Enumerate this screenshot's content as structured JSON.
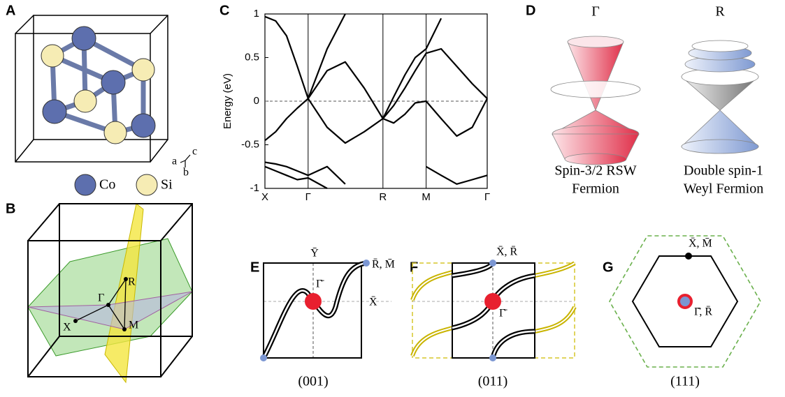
{
  "panel_a": {
    "label": "A",
    "legend": [
      "Co",
      "Si"
    ],
    "axes": [
      "a",
      "b",
      "c"
    ]
  },
  "panel_b": {
    "label": "B",
    "points": [
      "R",
      "Γ",
      "X",
      "M"
    ]
  },
  "chart_data": {
    "type": "line",
    "panel_label": "C",
    "y_label": "Energy (eV)",
    "x": [
      0,
      0.125,
      0.25,
      0.375,
      0.5,
      0.72,
      0.93,
      1.15,
      1.366,
      1.49,
      1.62,
      1.74,
      1.866,
      2.04,
      2.22,
      2.4,
      2.573
    ],
    "xlim": [
      0,
      2.573
    ],
    "xticks": [
      {
        "value": 0,
        "label": "X"
      },
      {
        "value": 0.5,
        "label": "Γ"
      },
      {
        "value": 1.366,
        "label": "R"
      },
      {
        "value": 1.866,
        "label": "M"
      },
      {
        "value": 2.573,
        "label": "Γ"
      }
    ],
    "ylim": [
      -1,
      1
    ],
    "yticks": [
      1,
      0.5,
      0,
      -0.5,
      -1
    ],
    "hline": 0,
    "series": [
      {
        "color": "#000000",
        "values": [
          0.97,
          0.92,
          0.75,
          0.4,
          0.03,
          0.35,
          0.45,
          0.15,
          -0.2,
          -0.05,
          0.15,
          0.35,
          0.55,
          0.6,
          0.4,
          0.2,
          0.03
        ]
      },
      {
        "color": "#000000",
        "values": [
          null,
          null,
          null,
          null,
          0.03,
          0.6,
          1.0,
          null,
          null,
          null,
          null,
          null,
          null,
          null,
          null,
          null,
          null
        ]
      },
      {
        "color": "#000000",
        "values": [
          null,
          null,
          null,
          null,
          null,
          null,
          null,
          null,
          -0.2,
          0.05,
          0.3,
          0.5,
          0.6,
          0.95,
          null,
          null,
          null
        ]
      },
      {
        "color": "#000000",
        "values": [
          -0.45,
          -0.35,
          -0.2,
          -0.08,
          0.03,
          -0.3,
          -0.48,
          -0.35,
          -0.2,
          -0.25,
          -0.15,
          -0.02,
          0.0,
          -0.2,
          -0.4,
          -0.3,
          0.03
        ]
      },
      {
        "color": "#000000",
        "values": [
          -0.7,
          -0.72,
          -0.75,
          -0.8,
          -0.85,
          -0.75,
          -0.95,
          null,
          null,
          null,
          null,
          null,
          null,
          null,
          null,
          null,
          null
        ]
      },
      {
        "color": "#000000",
        "values": [
          -0.75,
          -0.8,
          -0.85,
          -0.9,
          -0.88,
          -1.0,
          null,
          null,
          null,
          null,
          null,
          null,
          -0.75,
          -0.85,
          -0.95,
          -0.9,
          -0.85
        ]
      }
    ]
  },
  "panel_d": {
    "label": "D",
    "cones": [
      {
        "point": "Γ",
        "caption": [
          "Spin-3/2 RSW",
          "Fermion"
        ]
      },
      {
        "point": "R",
        "caption": [
          "Double spin-1",
          "Weyl Fermion"
        ]
      }
    ]
  },
  "panel_e": {
    "label": "E",
    "points": [
      "Ȳ",
      "R̄, M̄",
      "Γ̄",
      "X̄"
    ],
    "surface": "(001)"
  },
  "panel_f": {
    "label": "F",
    "points": [
      "X̄, R̄",
      "Γ̄"
    ],
    "surface": "(011)"
  },
  "panel_g": {
    "label": "G",
    "points": [
      "X̄, M̄",
      "Γ̄, R̄"
    ],
    "surface": "(111)"
  }
}
